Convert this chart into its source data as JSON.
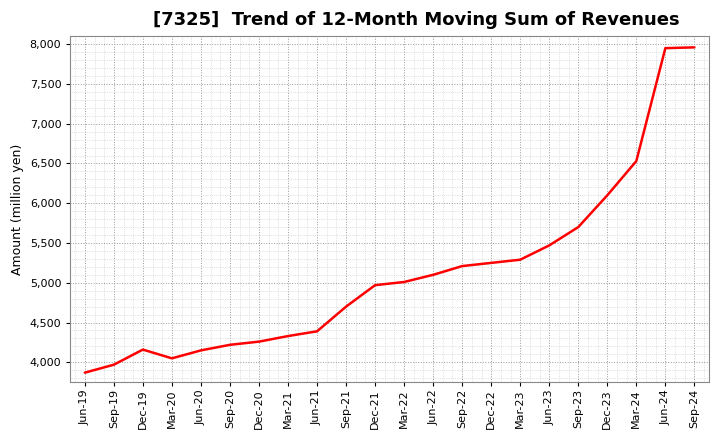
{
  "title": "[7325]  Trend of 12-Month Moving Sum of Revenues",
  "ylabel": "Amount (million yen)",
  "line_color": "#ff0000",
  "background_color": "#ffffff",
  "plot_bg_color": "#ffffff",
  "grid_color": "#aaaaaa",
  "ylim": [
    3750,
    8100
  ],
  "yticks": [
    4000,
    4500,
    5000,
    5500,
    6000,
    6500,
    7000,
    7500,
    8000
  ],
  "x_labels": [
    "Jun-19",
    "Sep-19",
    "Dec-19",
    "Mar-20",
    "Jun-20",
    "Sep-20",
    "Dec-20",
    "Mar-21",
    "Jun-21",
    "Sep-21",
    "Dec-21",
    "Mar-22",
    "Jun-22",
    "Sep-22",
    "Dec-22",
    "Mar-23",
    "Jun-23",
    "Sep-23",
    "Dec-23",
    "Mar-24",
    "Jun-24",
    "Sep-24"
  ],
  "y_vals": [
    3870,
    3970,
    4160,
    4050,
    4150,
    4220,
    4260,
    4330,
    4390,
    4700,
    4970,
    5010,
    5100,
    5210,
    5250,
    5290,
    5470,
    5700,
    6100,
    6530,
    7950,
    7960
  ],
  "title_fontsize": 13,
  "label_fontsize": 9,
  "tick_fontsize": 8
}
